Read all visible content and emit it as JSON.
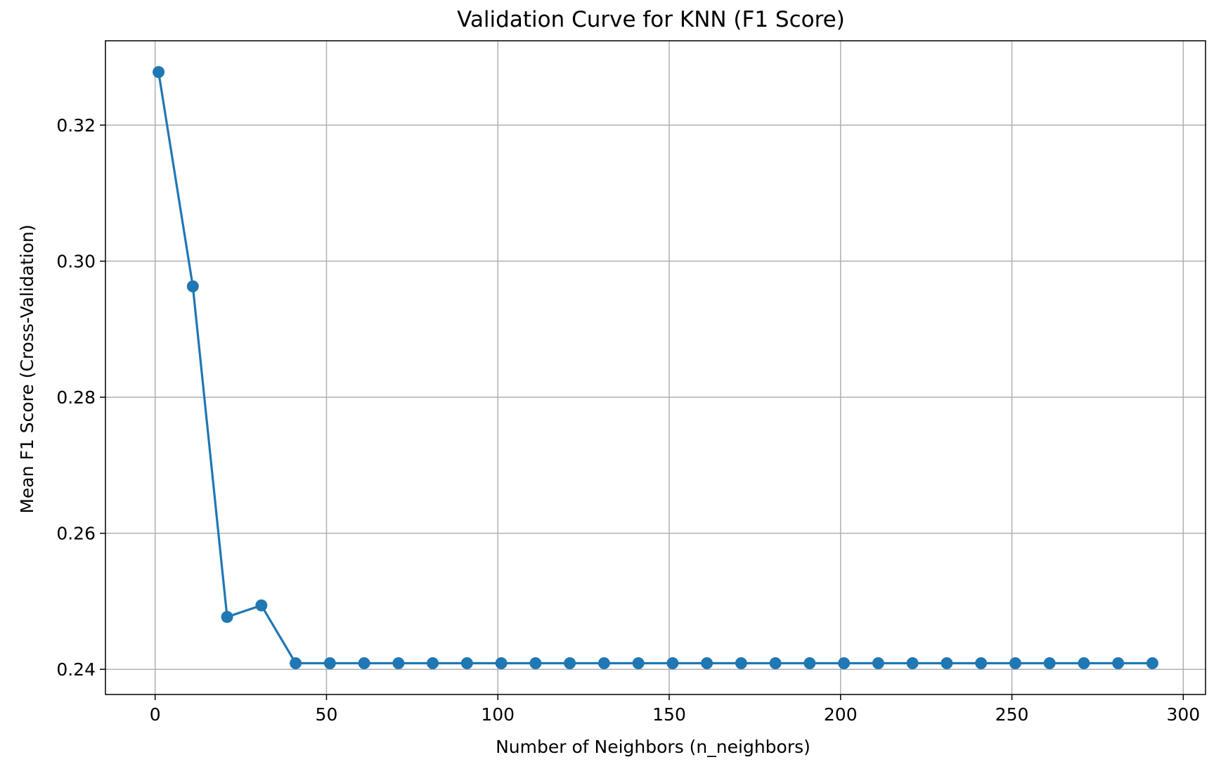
{
  "chart_data": {
    "type": "line",
    "title": "Validation Curve for KNN (F1 Score)",
    "xlabel": "Number of Neighbors (n_neighbors)",
    "ylabel": "Mean F1 Score (Cross-Validation)",
    "xlim": [
      -14.5,
      306.5
    ],
    "ylim": [
      0.2363,
      0.3324
    ],
    "xticks": [
      0,
      50,
      100,
      150,
      200,
      250,
      300
    ],
    "xtick_labels": [
      "0",
      "50",
      "100",
      "150",
      "200",
      "250",
      "300"
    ],
    "yticks": [
      0.24,
      0.26,
      0.28,
      0.3,
      0.32
    ],
    "ytick_labels": [
      "0.24",
      "0.26",
      "0.28",
      "0.30",
      "0.32"
    ],
    "grid": true,
    "legend": "none",
    "color": "#1f77b4",
    "marker": "circle",
    "x": [
      1,
      11,
      21,
      31,
      41,
      51,
      61,
      71,
      81,
      91,
      101,
      111,
      121,
      131,
      141,
      151,
      161,
      171,
      181,
      191,
      201,
      211,
      221,
      231,
      241,
      251,
      261,
      271,
      281,
      291
    ],
    "y": [
      0.3278,
      0.2963,
      0.2477,
      0.2494,
      0.2409,
      0.2409,
      0.2409,
      0.2409,
      0.2409,
      0.2409,
      0.2409,
      0.2409,
      0.2409,
      0.2409,
      0.2409,
      0.2409,
      0.2409,
      0.2409,
      0.2409,
      0.2409,
      0.2409,
      0.2409,
      0.2409,
      0.2409,
      0.2409,
      0.2409,
      0.2409,
      0.2409,
      0.2409,
      0.2409
    ]
  }
}
